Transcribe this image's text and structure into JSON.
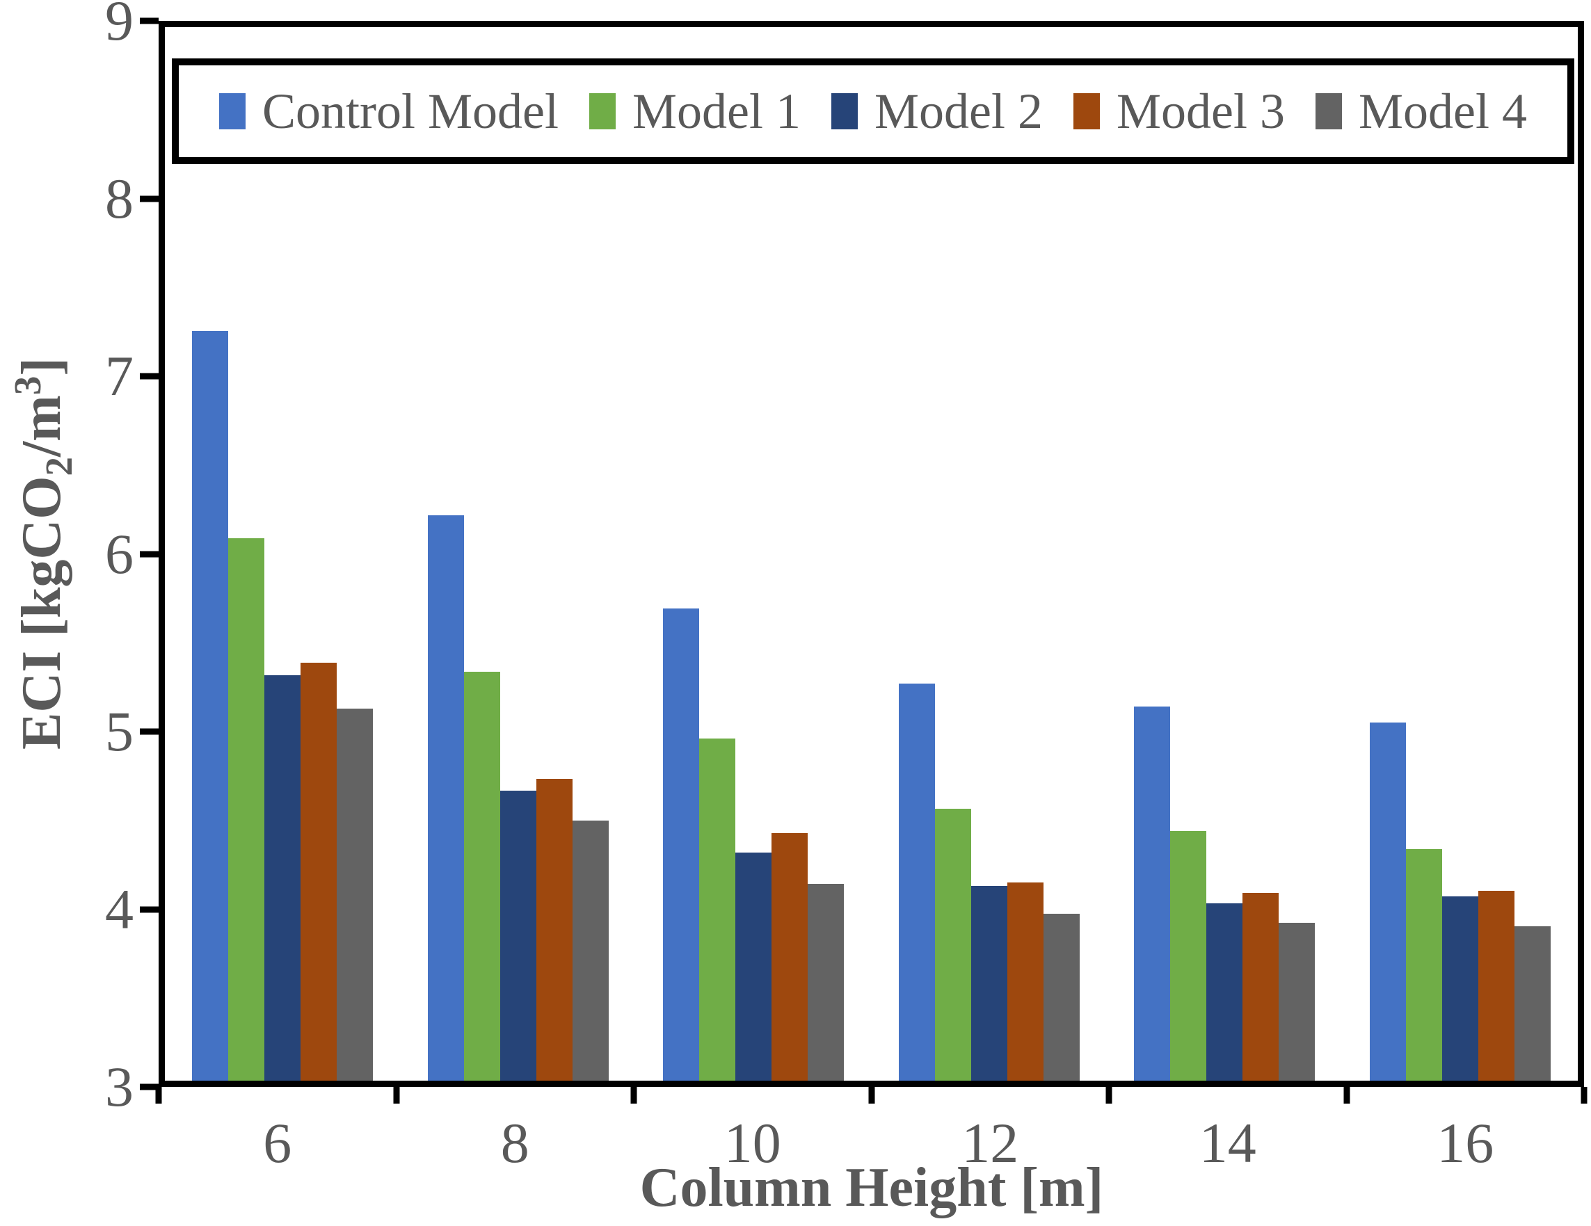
{
  "chart_data": {
    "type": "bar",
    "title": "",
    "xlabel": "Column Height [m]",
    "ylabel": "ECI [kgCO2/m3]",
    "ylabel_parts": {
      "pre": "ECI [kgCO",
      "sub": "2",
      "mid": "/m",
      "sup": "3",
      "post": "]"
    },
    "categories": [
      "6",
      "8",
      "10",
      "12",
      "14",
      "16"
    ],
    "series": [
      {
        "name": "Control Model",
        "color": "#4472C4",
        "values": [
          7.27,
          6.22,
          5.69,
          5.26,
          5.13,
          5.04
        ]
      },
      {
        "name": "Model 1",
        "color": "#70AD47",
        "values": [
          6.09,
          5.33,
          4.95,
          4.55,
          4.42,
          4.32
        ]
      },
      {
        "name": "Model 2",
        "color": "#264478",
        "values": [
          5.31,
          4.65,
          4.3,
          4.11,
          4.01,
          4.05
        ]
      },
      {
        "name": "Model 3",
        "color": "#9E480E",
        "values": [
          5.38,
          4.72,
          4.41,
          4.13,
          4.07,
          4.08
        ]
      },
      {
        "name": "Model 4",
        "color": "#636363",
        "values": [
          5.12,
          4.48,
          4.12,
          3.95,
          3.9,
          3.88
        ]
      }
    ],
    "y_axis": {
      "min": 3,
      "max": 9,
      "step": 1,
      "ticks": [
        3,
        4,
        5,
        6,
        7,
        8,
        9
      ]
    },
    "x_axis": {
      "boundary_ticks": 7
    },
    "legend_position": "top-inside",
    "grid": false,
    "colors": {
      "text": "#595959",
      "axis": "#000000",
      "background": "#ffffff"
    }
  }
}
